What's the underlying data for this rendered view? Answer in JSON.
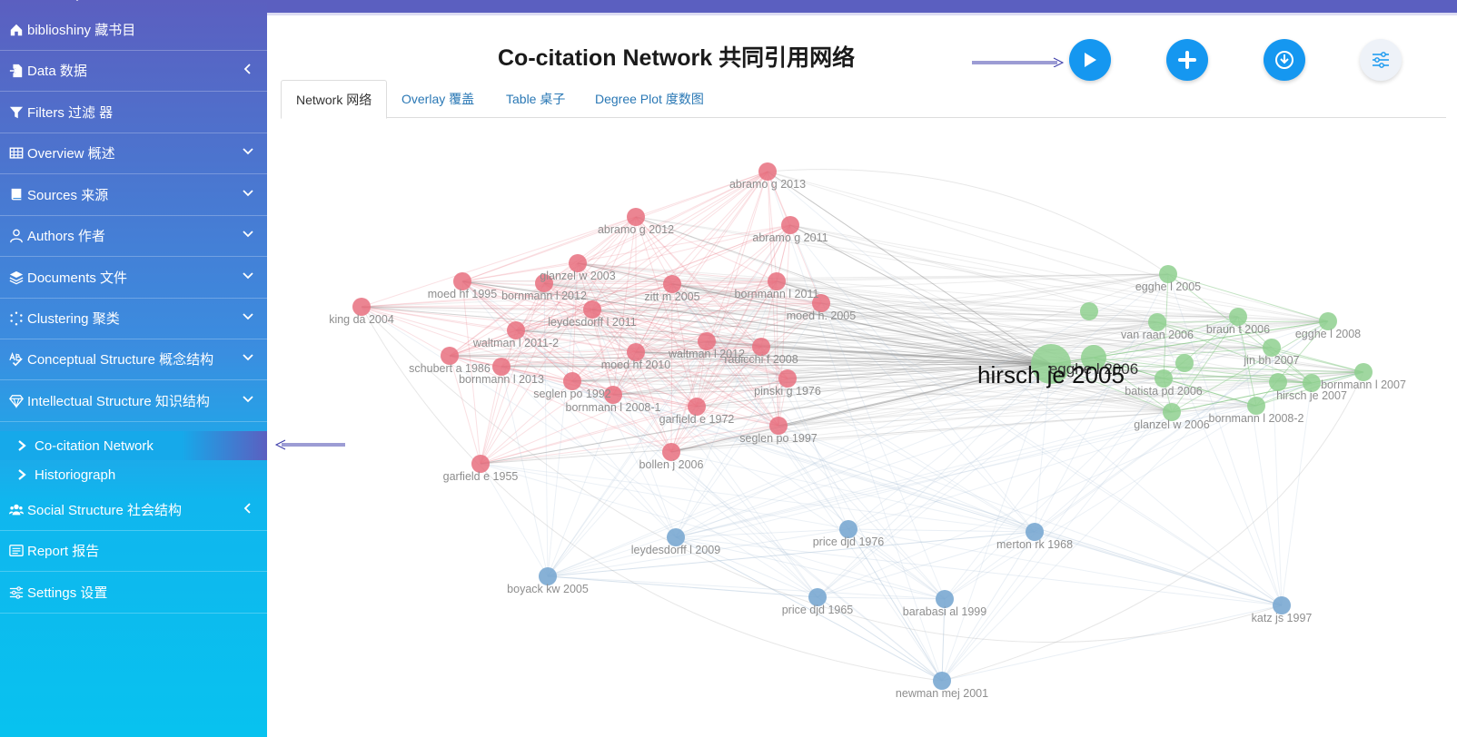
{
  "sidebar": {
    "items": [
      {
        "label": "biblioshiny 藏书目",
        "icon": "home-icon",
        "arrow": null
      },
      {
        "label": "Data 数据",
        "icon": "file-import-icon",
        "arrow": "left"
      },
      {
        "label": "Filters 过滤 器",
        "icon": "filter-icon",
        "arrow": null
      },
      {
        "label": "Overview 概述",
        "icon": "table-icon",
        "arrow": "down"
      },
      {
        "label": "Sources 来源",
        "icon": "book-icon",
        "arrow": "down"
      },
      {
        "label": "Authors 作者",
        "icon": "user-icon",
        "arrow": "down"
      },
      {
        "label": "Documents 文件",
        "icon": "layers-icon",
        "arrow": "down"
      },
      {
        "label": "Clustering 聚类",
        "icon": "dots-circle-icon",
        "arrow": "down"
      },
      {
        "label": "Conceptual Structure 概念结构",
        "icon": "spell-check-icon",
        "arrow": "down"
      },
      {
        "label": "Intellectual Structure 知识结构",
        "icon": "gem-icon",
        "arrow": "down"
      }
    ],
    "subitems": [
      {
        "label": "Co-citation Network",
        "active": true
      },
      {
        "label": "Historiograph",
        "active": false
      }
    ],
    "items_after": [
      {
        "label": "Social Structure 社会结构",
        "icon": "users-icon",
        "arrow": "left"
      },
      {
        "label": "Report 报告",
        "icon": "report-icon",
        "arrow": null
      },
      {
        "label": "Settings 设置",
        "icon": "sliders-icon",
        "arrow": null
      }
    ]
  },
  "header": {
    "title": "Co-citation Network 共同引用网络",
    "buttons": [
      "play-icon",
      "plus-icon",
      "download-icon",
      "sliders-icon"
    ]
  },
  "tabs": [
    {
      "label": "Network 网络",
      "active": true
    },
    {
      "label": "Overlay 覆盖",
      "active": false
    },
    {
      "label": "Table 桌子",
      "active": false
    },
    {
      "label": "Degree Plot 度数图",
      "active": false
    }
  ],
  "colors": {
    "cluster_red": "#e8707f",
    "cluster_green": "#8fd08f",
    "cluster_blue": "#7aa8d2",
    "accent": "#1597f0",
    "sidebar_top": "#5b5fc0",
    "sidebar_bottom": "#08c2ef"
  },
  "network": {
    "nodes": [
      {
        "label": "abramo g 2013",
        "cluster": "red"
      },
      {
        "label": "abramo g 2012",
        "cluster": "red"
      },
      {
        "label": "abramo g 2011",
        "cluster": "red"
      },
      {
        "label": "glanzel w 2003",
        "cluster": "red"
      },
      {
        "label": "moed hf 1995",
        "cluster": "red"
      },
      {
        "label": "bornmann l 2012",
        "cluster": "red"
      },
      {
        "label": "zitt m 2005",
        "cluster": "red"
      },
      {
        "label": "bornmann l 2011",
        "cluster": "red"
      },
      {
        "label": "king da 2004",
        "cluster": "red"
      },
      {
        "label": "moed h. 2005",
        "cluster": "red"
      },
      {
        "label": "waltman l 2011-2",
        "cluster": "red"
      },
      {
        "label": "leydesdorff l 2011",
        "cluster": "red"
      },
      {
        "label": "waltman l 2012",
        "cluster": "red"
      },
      {
        "label": "radicchi f 2008",
        "cluster": "red"
      },
      {
        "label": "schubert a 1986",
        "cluster": "red"
      },
      {
        "label": "moed hf 2010",
        "cluster": "red"
      },
      {
        "label": "bornmann l 2013",
        "cluster": "red"
      },
      {
        "label": "pinski g 1976",
        "cluster": "red"
      },
      {
        "label": "seglen po 1992",
        "cluster": "red"
      },
      {
        "label": "bornmann l 2008-1",
        "cluster": "red"
      },
      {
        "label": "garfield e 1972",
        "cluster": "red"
      },
      {
        "label": "seglen po 1997",
        "cluster": "red"
      },
      {
        "label": "bollen j 2006",
        "cluster": "red"
      },
      {
        "label": "garfield e 1955",
        "cluster": "red"
      },
      {
        "label": "egghe l 2005",
        "cluster": "green"
      },
      {
        "label": "van raan 2006",
        "cluster": "green"
      },
      {
        "label": "braun t 2006",
        "cluster": "green"
      },
      {
        "label": "egghe l 2008",
        "cluster": "green"
      },
      {
        "label": "jin bh 2007",
        "cluster": "green"
      },
      {
        "label": "egghe l 2006",
        "cluster": "green"
      },
      {
        "label": "hirsch je 2005",
        "cluster": "green"
      },
      {
        "label": "batista pd 2006",
        "cluster": "green"
      },
      {
        "label": "bornmann l 2007",
        "cluster": "green"
      },
      {
        "label": "hirsch je 2007",
        "cluster": "green"
      },
      {
        "label": "bornmann l 2008-2",
        "cluster": "green"
      },
      {
        "label": "glanzel w 2006",
        "cluster": "green"
      },
      {
        "label": "leydesdorff l 2009",
        "cluster": "blue"
      },
      {
        "label": "price djd 1976",
        "cluster": "blue"
      },
      {
        "label": "merton rk 1968",
        "cluster": "blue"
      },
      {
        "label": "boyack kw 2005",
        "cluster": "blue"
      },
      {
        "label": "price djd 1965",
        "cluster": "blue"
      },
      {
        "label": "barabasi al 1999",
        "cluster": "blue"
      },
      {
        "label": "katz js 1997",
        "cluster": "blue"
      },
      {
        "label": "newman mej 2001",
        "cluster": "blue"
      }
    ]
  }
}
